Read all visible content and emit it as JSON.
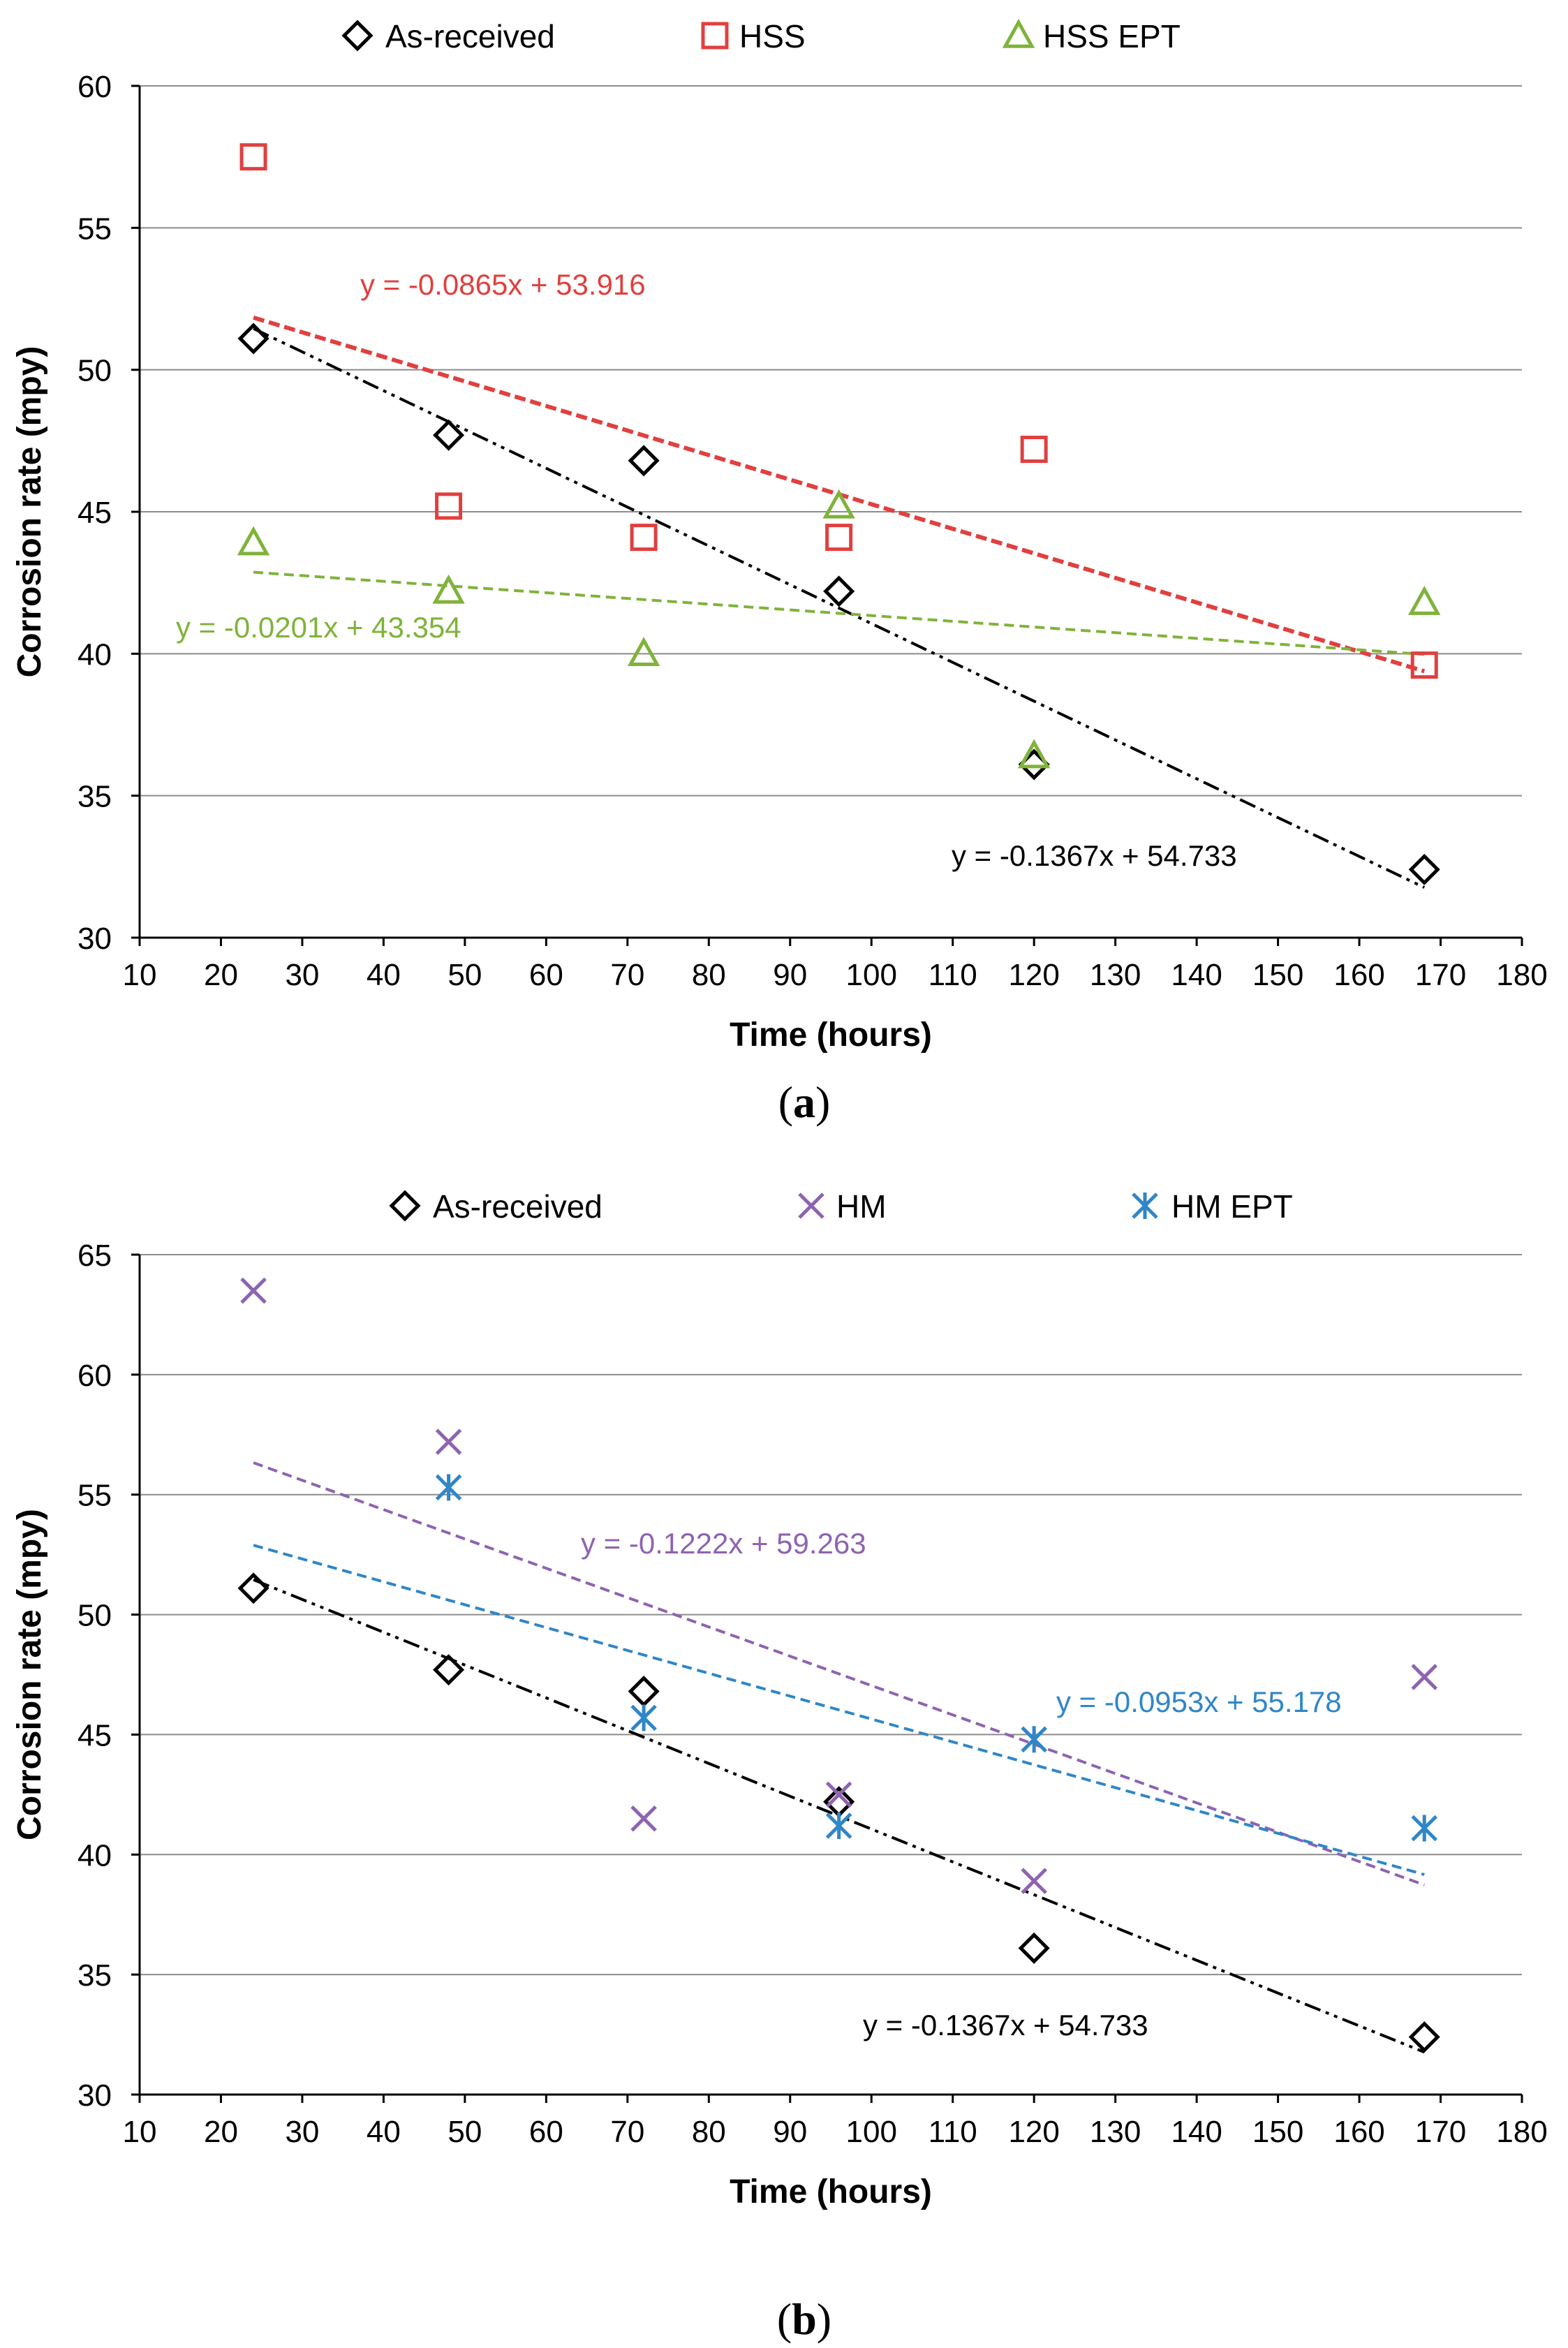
{
  "chart_data": [
    {
      "type": "scatter",
      "panel_label_open": "(",
      "panel_label_letter": "a",
      "panel_label_close": ")",
      "xlabel": "Time (hours)",
      "ylabel": "Corrosion rate (mpy)",
      "xlim": [
        10,
        180
      ],
      "ylim": [
        30,
        60
      ],
      "xticks": [
        10,
        20,
        30,
        40,
        50,
        60,
        70,
        80,
        90,
        100,
        110,
        120,
        130,
        140,
        150,
        160,
        170,
        180
      ],
      "yticks": [
        30,
        35,
        40,
        45,
        50,
        55,
        60
      ],
      "grid": "horizontal",
      "legend_position": "top",
      "series": [
        {
          "name": "As-received",
          "marker": "diamond",
          "color": "#000000",
          "x": [
            24,
            48,
            72,
            96,
            120,
            168
          ],
          "y": [
            51.1,
            47.7,
            46.8,
            42.2,
            36.1,
            32.4
          ],
          "trendline": {
            "slope": -0.1367,
            "intercept": 54.733,
            "x_range": [
              24,
              168
            ],
            "style": "dash-dot-dot",
            "label": "y = -0.1367x + 54.733"
          }
        },
        {
          "name": "HSS",
          "marker": "square",
          "color": "#e0403f",
          "x": [
            24,
            48,
            72,
            96,
            120,
            168
          ],
          "y": [
            57.5,
            45.2,
            44.1,
            44.1,
            47.2,
            39.6
          ],
          "trendline": {
            "slope": -0.0865,
            "intercept": 53.916,
            "x_range": [
              24,
              168
            ],
            "style": "dashed-heavy",
            "label": "y = -0.0865x + 53.916"
          }
        },
        {
          "name": "HSS EPT",
          "marker": "triangle",
          "color": "#7fb33a",
          "x": [
            24,
            48,
            72,
            96,
            120,
            168
          ],
          "y": [
            43.9,
            42.2,
            40.0,
            45.2,
            36.4,
            41.8
          ],
          "trendline": {
            "slope": -0.0201,
            "intercept": 43.354,
            "x_range": [
              24,
              168
            ],
            "style": "dashed",
            "label": "y = -0.0201x + 43.354"
          }
        }
      ]
    },
    {
      "type": "scatter",
      "panel_label_open": "(",
      "panel_label_letter": "b",
      "panel_label_close": ")",
      "xlabel": "Time (hours)",
      "ylabel": "Corrosion rate (mpy)",
      "xlim": [
        10,
        180
      ],
      "ylim": [
        30,
        65
      ],
      "xticks": [
        10,
        20,
        30,
        40,
        50,
        60,
        70,
        80,
        90,
        100,
        110,
        120,
        130,
        140,
        150,
        160,
        170,
        180
      ],
      "yticks": [
        30,
        35,
        40,
        45,
        50,
        55,
        60,
        65
      ],
      "grid": "horizontal",
      "legend_position": "top",
      "series": [
        {
          "name": "As-received",
          "marker": "diamond",
          "color": "#000000",
          "x": [
            24,
            48,
            72,
            96,
            120,
            168
          ],
          "y": [
            51.1,
            47.7,
            46.8,
            42.2,
            36.1,
            32.4
          ],
          "trendline": {
            "slope": -0.1367,
            "intercept": 54.733,
            "x_range": [
              24,
              168
            ],
            "style": "dash-dot-dot",
            "label": "y = -0.1367x + 54.733"
          }
        },
        {
          "name": "HM",
          "marker": "x",
          "color": "#8e63b0",
          "x": [
            24,
            48,
            72,
            96,
            120,
            168
          ],
          "y": [
            63.5,
            57.2,
            41.5,
            42.5,
            38.9,
            47.4
          ],
          "trendline": {
            "slope": -0.1222,
            "intercept": 59.263,
            "x_range": [
              24,
              168
            ],
            "style": "dashed",
            "label": "y = -0.1222x + 59.263"
          }
        },
        {
          "name": "HM EPT",
          "marker": "asterisk",
          "color": "#2f86c8",
          "x": [
            48,
            72,
            96,
            120,
            168
          ],
          "y": [
            55.3,
            45.7,
            41.2,
            44.8,
            41.1
          ],
          "trendline": {
            "slope": -0.0953,
            "intercept": 55.178,
            "x_range": [
              24,
              168
            ],
            "style": "dashed",
            "label": "y = -0.0953x + 55.178"
          }
        }
      ]
    }
  ]
}
